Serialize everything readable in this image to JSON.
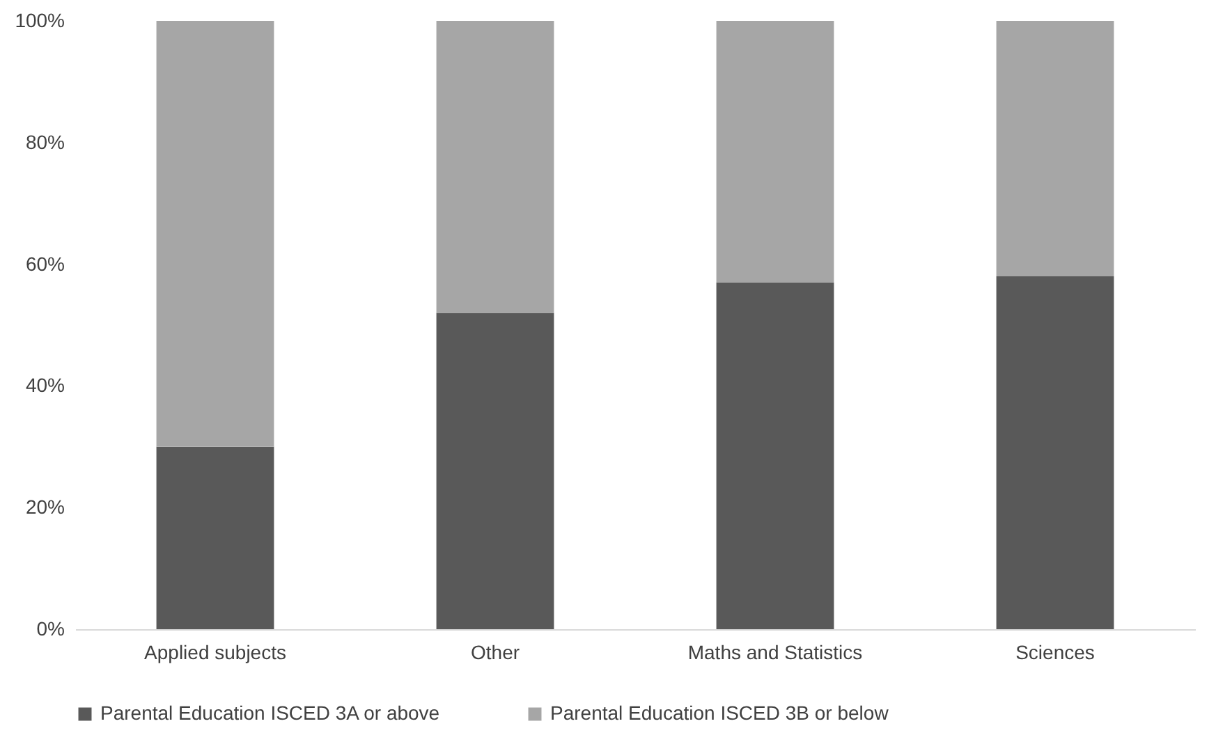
{
  "chart_data": {
    "type": "bar",
    "stacked": true,
    "categories": [
      "Applied subjects",
      "Other",
      "Maths and Statistics",
      "Sciences"
    ],
    "series": [
      {
        "name": "Parental Education ISCED 3A or above",
        "color": "#595959",
        "values": [
          30,
          52,
          57,
          58
        ]
      },
      {
        "name": "Parental Education ISCED 3B or below",
        "color": "#a6a6a6",
        "values": [
          70,
          48,
          43,
          42
        ]
      }
    ],
    "ylim": [
      0,
      100
    ],
    "yticks": [
      {
        "value": 0,
        "label": "0%"
      },
      {
        "value": 20,
        "label": "20%"
      },
      {
        "value": 40,
        "label": "40%"
      },
      {
        "value": 60,
        "label": "60%"
      },
      {
        "value": 80,
        "label": "80%"
      },
      {
        "value": 100,
        "label": "100%"
      }
    ],
    "legend": "bottom"
  }
}
